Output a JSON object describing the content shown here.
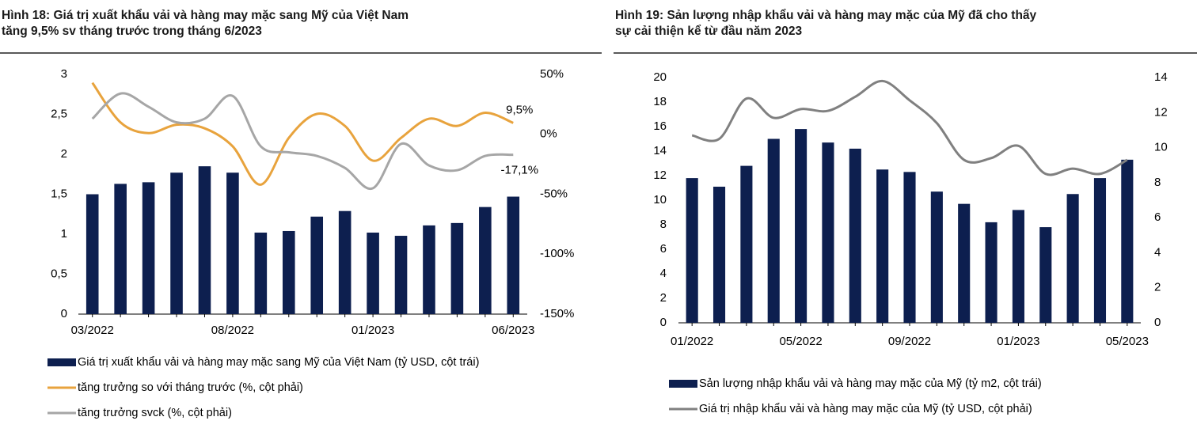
{
  "chart_data": [
    {
      "type": "combo",
      "title": [
        "Hình 18: Giá trị xuất khẩu vải và hàng may mặc sang Mỹ của Việt Nam",
        "tăng 9,5% sv tháng trước trong tháng 6/2023"
      ],
      "categories": [
        "03/2022",
        null,
        null,
        null,
        null,
        "08/2022",
        null,
        null,
        null,
        null,
        "01/2023",
        null,
        null,
        null,
        null,
        "06/2023"
      ],
      "series": [
        {
          "name": "Giá trị xuất khẩu vải và hàng may mặc sang Mỹ của Việt Nam (tỷ USD, cột trái)",
          "type": "bar",
          "color": "#0d1f4f",
          "values": [
            1.5,
            1.63,
            1.65,
            1.77,
            1.85,
            1.77,
            1.02,
            1.04,
            1.22,
            1.29,
            1.02,
            0.98,
            1.11,
            1.14,
            1.34,
            1.47
          ]
        },
        {
          "name": "tăng trưởng so với tháng trước (%, cột phải)",
          "type": "line",
          "axis": "y2",
          "color": "#e8a33d",
          "values": [
            43,
            10,
            1,
            8,
            5,
            -10,
            -42,
            -3,
            17,
            7,
            -22,
            -3,
            13,
            7,
            18,
            9.5
          ],
          "value_labels": [
            null,
            null,
            null,
            null,
            null,
            null,
            null,
            null,
            null,
            null,
            null,
            null,
            null,
            null,
            null,
            "9,5%"
          ]
        },
        {
          "name": "tăng trưởng svck (%, cột phải)",
          "type": "line",
          "axis": "y2",
          "color": "#a6a6a6",
          "values": [
            13,
            34,
            23,
            10,
            13,
            32,
            -10,
            -15,
            -18,
            -28,
            -45,
            -8,
            -26,
            -30,
            -18,
            -17.1
          ],
          "value_labels": [
            null,
            null,
            null,
            null,
            null,
            null,
            null,
            null,
            null,
            null,
            null,
            null,
            null,
            null,
            null,
            "-17,1%"
          ]
        }
      ],
      "ylim": [
        0,
        3
      ],
      "yticks": [
        0,
        {
          "value": 0.5,
          "label": "0,5"
        },
        1,
        {
          "value": 1.5,
          "label": "1,5"
        },
        2,
        {
          "value": 2.5,
          "label": "2,5"
        },
        3
      ],
      "y2lim": [
        -150,
        50
      ],
      "y2ticks": [
        {
          "value": -150,
          "label": "-150%"
        },
        {
          "value": -100,
          "label": "-100%"
        },
        {
          "value": -50,
          "label": "-50%"
        },
        {
          "value": 0,
          "label": "0%"
        },
        {
          "value": 50,
          "label": "50%"
        }
      ]
    },
    {
      "type": "combo",
      "title": [
        "Hình 19: Sản lượng nhập khẩu vải và hàng may mặc của Mỹ đã cho thấy",
        "sự cải thiện kể từ đầu năm 2023"
      ],
      "categories": [
        "01/2022",
        null,
        null,
        null,
        "05/2022",
        null,
        null,
        null,
        "09/2022",
        null,
        null,
        null,
        "01/2023",
        null,
        null,
        null,
        "05/2023"
      ],
      "series": [
        {
          "name": "Sản lượng nhập khẩu vải và hàng may mặc của Mỹ (tỷ m2, cột trái)",
          "type": "bar",
          "color": "#0d1f4f",
          "values": [
            11.8,
            11.1,
            12.8,
            15.0,
            15.8,
            14.7,
            14.2,
            12.5,
            12.3,
            10.7,
            9.7,
            8.2,
            9.2,
            7.8,
            10.5,
            11.8,
            13.3
          ]
        },
        {
          "name": "Giá trị nhập khẩu vải và hàng may mặc của Mỹ (tỷ USD, cột phải)",
          "type": "line",
          "axis": "y2",
          "color": "#808080",
          "values": [
            10.7,
            10.5,
            12.8,
            11.7,
            12.2,
            12.1,
            12.9,
            13.8,
            12.7,
            11.4,
            9.3,
            9.4,
            10.1,
            8.5,
            8.8,
            8.5,
            9.3
          ]
        }
      ],
      "ylim": [
        0,
        20
      ],
      "yticks": [
        0,
        2,
        4,
        6,
        8,
        10,
        12,
        14,
        16,
        18,
        20
      ],
      "y2lim": [
        0,
        14
      ],
      "y2ticks": [
        0,
        2,
        4,
        6,
        8,
        10,
        12,
        14
      ]
    }
  ]
}
